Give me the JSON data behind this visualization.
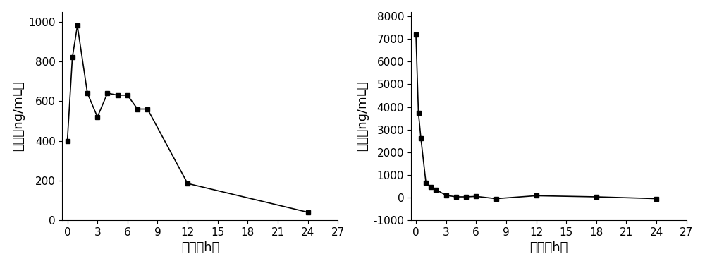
{
  "left_x": [
    0,
    0.5,
    1,
    2,
    3,
    4,
    5,
    6,
    7,
    8,
    12,
    24
  ],
  "left_y": [
    400,
    820,
    980,
    640,
    520,
    640,
    630,
    630,
    560,
    560,
    185,
    40
  ],
  "left_ylabel": "浓度（ng/mL）",
  "left_xlabel": "时间（h）",
  "left_ylim": [
    0,
    1050
  ],
  "left_yticks": [
    0,
    200,
    400,
    600,
    800,
    1000
  ],
  "left_xticks": [
    0,
    3,
    6,
    9,
    12,
    15,
    18,
    21,
    24,
    27
  ],
  "left_xlim": [
    -0.5,
    27
  ],
  "right_x": [
    0,
    0.25,
    0.5,
    1,
    1.5,
    2,
    3,
    4,
    5,
    6,
    8,
    12,
    18,
    24
  ],
  "right_y": [
    7200,
    3750,
    2600,
    650,
    480,
    350,
    100,
    30,
    30,
    50,
    -50,
    80,
    30,
    -50
  ],
  "right_ylabel": "浓度（ng/mL）",
  "right_xlabel": "时间（h）",
  "right_ylim": [
    -1000,
    8200
  ],
  "right_yticks": [
    -1000,
    0,
    1000,
    2000,
    3000,
    4000,
    5000,
    6000,
    7000,
    8000
  ],
  "right_xticks": [
    0,
    3,
    6,
    9,
    12,
    15,
    18,
    21,
    24,
    27
  ],
  "right_xlim": [
    -0.5,
    27
  ],
  "line_color": "#000000",
  "marker": "s",
  "markersize": 5,
  "linewidth": 1.2,
  "bg_color": "#ffffff",
  "tick_fontsize": 11,
  "label_fontsize": 13
}
